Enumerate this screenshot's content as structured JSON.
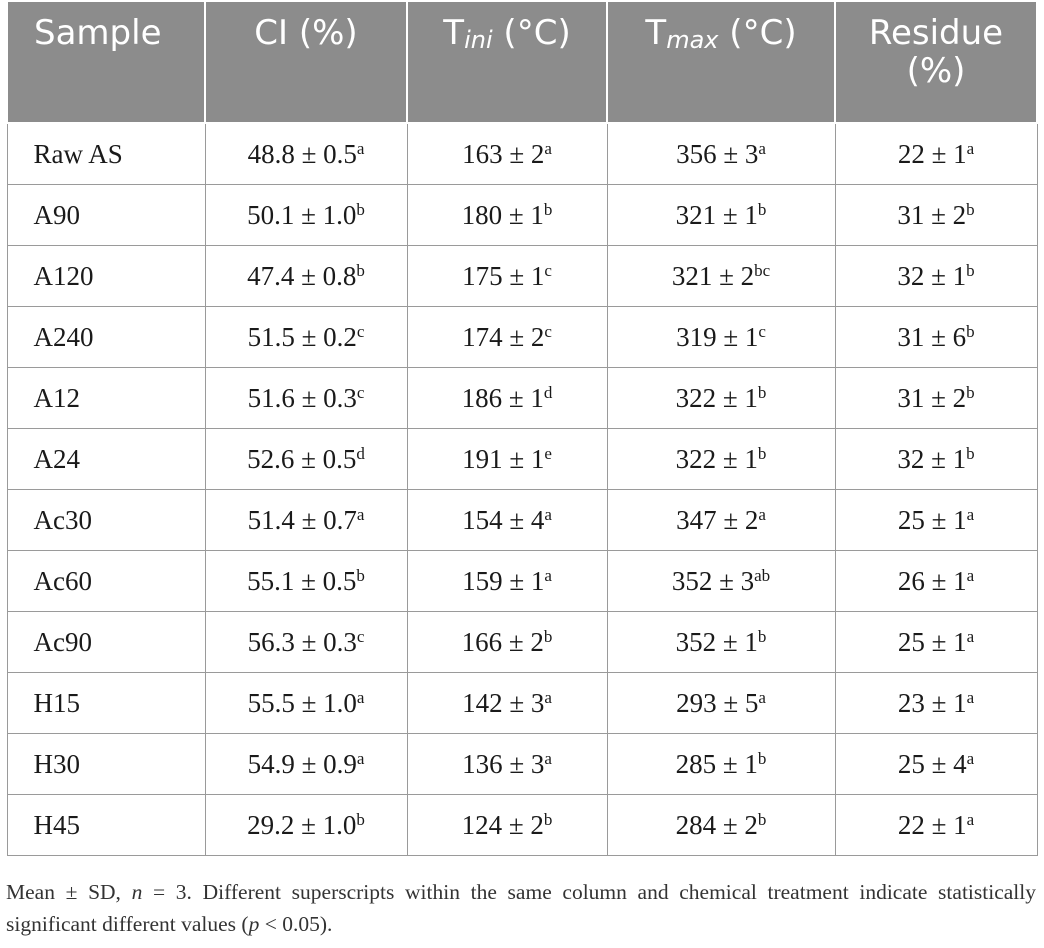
{
  "table": {
    "headers": [
      {
        "main": "Sample",
        "sub": "",
        "suffix": ""
      },
      {
        "main": "CI (%)",
        "sub": "",
        "suffix": ""
      },
      {
        "main": "T",
        "sub": "ini",
        "suffix": " (°C)"
      },
      {
        "main": "T",
        "sub": "max",
        "suffix": " (°C)"
      },
      {
        "main": "Residue (%)",
        "sub": "",
        "suffix": ""
      }
    ],
    "rows": [
      {
        "sample": "Raw AS",
        "ci": "48.8 ± 0.5",
        "ci_sup": "a",
        "tini": "163 ± 2",
        "tini_sup": "a",
        "tmax": "356 ± 3",
        "tmax_sup": "a",
        "residue": "22 ± 1",
        "residue_sup": "a"
      },
      {
        "sample": "A90",
        "ci": "50.1 ± 1.0",
        "ci_sup": "b",
        "tini": "180 ± 1",
        "tini_sup": "b",
        "tmax": "321 ± 1",
        "tmax_sup": "b",
        "residue": "31 ± 2",
        "residue_sup": "b"
      },
      {
        "sample": "A120",
        "ci": "47.4 ± 0.8",
        "ci_sup": "b",
        "tini": "175 ± 1",
        "tini_sup": "c",
        "tmax": "321 ± 2",
        "tmax_sup": "bc",
        "residue": "32 ± 1",
        "residue_sup": "b"
      },
      {
        "sample": "A240",
        "ci": "51.5 ± 0.2",
        "ci_sup": "c",
        "tini": "174 ± 2",
        "tini_sup": "c",
        "tmax": "319 ± 1",
        "tmax_sup": "c",
        "residue": "31 ± 6",
        "residue_sup": "b"
      },
      {
        "sample": "A12",
        "ci": "51.6 ± 0.3",
        "ci_sup": "c",
        "tini": "186 ± 1",
        "tini_sup": "d",
        "tmax": "322 ± 1",
        "tmax_sup": "b",
        "residue": "31 ± 2",
        "residue_sup": "b"
      },
      {
        "sample": "A24",
        "ci": "52.6 ± 0.5",
        "ci_sup": "d",
        "tini": "191 ± 1",
        "tini_sup": "e",
        "tmax": "322 ± 1",
        "tmax_sup": "b",
        "residue": "32 ± 1",
        "residue_sup": "b"
      },
      {
        "sample": "Ac30",
        "ci": "51.4 ± 0.7",
        "ci_sup": "a",
        "tini": "154 ± 4",
        "tini_sup": "a",
        "tmax": "347 ± 2",
        "tmax_sup": "a",
        "residue": "25 ± 1",
        "residue_sup": "a"
      },
      {
        "sample": "Ac60",
        "ci": "55.1 ± 0.5",
        "ci_sup": "b",
        "tini": "159 ± 1",
        "tini_sup": "a",
        "tmax": "352 ± 3",
        "tmax_sup": "ab",
        "residue": "26 ± 1",
        "residue_sup": "a"
      },
      {
        "sample": "Ac90",
        "ci": "56.3 ± 0.3",
        "ci_sup": "c",
        "tini": "166 ± 2",
        "tini_sup": "b",
        "tmax": "352 ± 1",
        "tmax_sup": "b",
        "residue": "25 ± 1",
        "residue_sup": "a"
      },
      {
        "sample": "H15",
        "ci": "55.5 ± 1.0",
        "ci_sup": "a",
        "tini": "142 ± 3",
        "tini_sup": "a",
        "tmax": "293 ± 5",
        "tmax_sup": "a",
        "residue": "23 ± 1",
        "residue_sup": "a"
      },
      {
        "sample": "H30",
        "ci": "54.9 ± 0.9",
        "ci_sup": "a",
        "tini": "136 ± 3",
        "tini_sup": "a",
        "tmax": "285 ± 1",
        "tmax_sup": "b",
        "residue": "25 ± 4",
        "residue_sup": "a"
      },
      {
        "sample": "H45",
        "ci": "29.2 ± 1.0",
        "ci_sup": "b",
        "tini": "124 ± 2",
        "tini_sup": "b",
        "tmax": "284 ± 2",
        "tmax_sup": "b",
        "residue": "22 ± 1",
        "residue_sup": "a"
      }
    ]
  },
  "footnote": {
    "part1": "Mean ± SD, ",
    "n_var": "n",
    "part2": " = 3. Different superscripts within the same column and chemical treatment indicate statistically significant different values (",
    "p_var": "p",
    "part3": " < 0.05)."
  },
  "colors": {
    "header_bg": "#8c8c8c",
    "header_text": "#ffffff",
    "border": "#9a9a9a"
  }
}
